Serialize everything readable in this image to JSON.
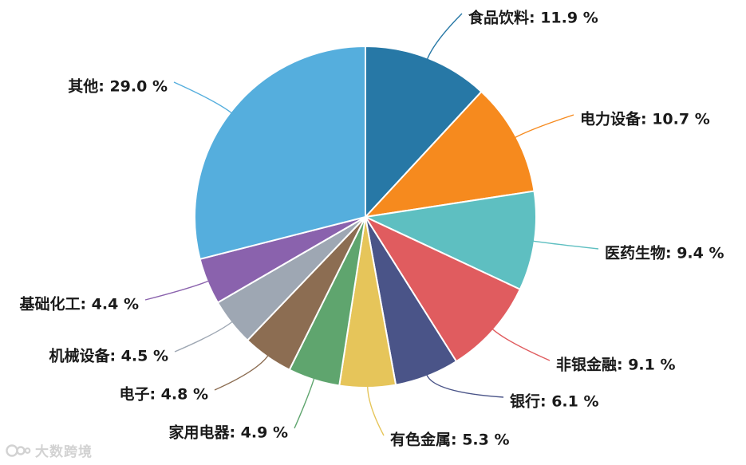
{
  "chart_data": {
    "type": "pie",
    "title": "",
    "slices": [
      {
        "label": "食品饮料",
        "value": 11.9,
        "display": "11.9 %",
        "color": "#2778a6"
      },
      {
        "label": "电力设备",
        "value": 10.7,
        "display": "10.7 %",
        "color": "#f68a1e"
      },
      {
        "label": "医药生物",
        "value": 9.4,
        "display": "9.4 %",
        "color": "#5ebfc1"
      },
      {
        "label": "非银金融",
        "value": 9.1,
        "display": "9.1 %",
        "color": "#e05c5f"
      },
      {
        "label": "银行",
        "value": 6.1,
        "display": "6.1 %",
        "color": "#4a5488"
      },
      {
        "label": "有色金属",
        "value": 5.3,
        "display": "5.3 %",
        "color": "#e6c55a"
      },
      {
        "label": "家用电器",
        "value": 4.9,
        "display": "4.9 %",
        "color": "#5fa56e"
      },
      {
        "label": "电子",
        "value": 4.8,
        "display": "4.8 %",
        "color": "#8c6d52"
      },
      {
        "label": "机械设备",
        "value": 4.5,
        "display": "4.5 %",
        "color": "#9ea7b3"
      },
      {
        "label": "基础化工",
        "value": 4.4,
        "display": "4.4 %",
        "color": "#8a62ad"
      },
      {
        "label": "其他",
        "value": 29.0,
        "display": "29.0 %",
        "color": "#55aedd"
      }
    ],
    "legend": "none",
    "labels": "outside-with-leader-lines"
  },
  "watermark": {
    "text": "大数跨境",
    "icon": "brand-logo-icon"
  }
}
